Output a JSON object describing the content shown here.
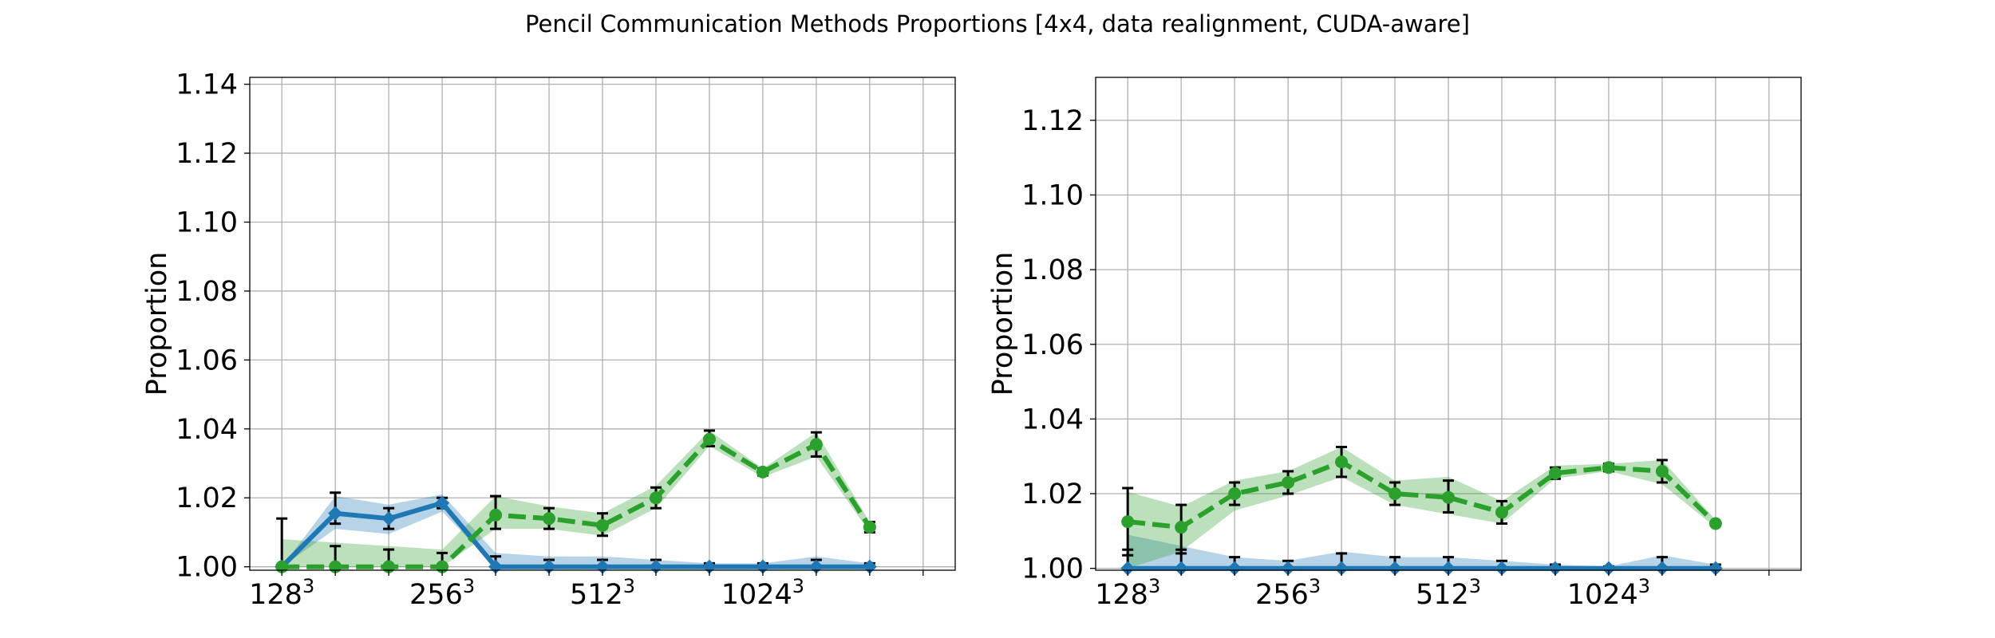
{
  "title": "Pencil Communication Methods Proportions [4x4, data realignment, CUDA-aware]",
  "colors": {
    "series1": "#1f77b4",
    "series2": "#2ca02c",
    "grid": "#b0b0b0",
    "errorbar": "#000000"
  },
  "chart_data": [
    {
      "type": "line",
      "ylabel": "Proportion",
      "ylim": [
        0.999,
        1.142
      ],
      "yticks": [
        "1.00",
        "1.02",
        "1.04",
        "1.06",
        "1.08",
        "1.10",
        "1.12",
        "1.14"
      ],
      "x_tick_labels": [
        "128",
        "256",
        "512",
        "1024"
      ],
      "x_tick_exponent": "3",
      "x_tick_positions": [
        0,
        3,
        6,
        9
      ],
      "grid": true,
      "x": [
        0,
        1,
        2,
        3,
        4,
        5,
        6,
        7,
        8,
        9,
        10,
        11
      ],
      "series": [
        {
          "style": "solid",
          "marker": "diamond",
          "values": [
            1.0,
            1.0155,
            1.014,
            1.0185,
            1.0,
            1.0,
            1.0,
            1.0,
            1.0,
            1.0,
            1.0,
            1.0
          ],
          "band_low": [
            1.0,
            1.011,
            1.0095,
            1.016,
            1.0,
            1.0,
            1.0,
            1.0,
            1.0,
            1.0,
            1.0,
            1.0
          ],
          "band_high": [
            1.0,
            1.0205,
            1.018,
            1.021,
            1.004,
            1.003,
            1.003,
            1.002,
            1.001,
            1.001,
            1.003,
            1.001
          ],
          "err_low": [
            0.0,
            0.003,
            0.003,
            0.0015,
            0.0,
            0.0,
            0.0,
            0.0,
            0.0,
            0.0,
            0.0,
            0.0
          ],
          "err_high": [
            0.0,
            0.006,
            0.003,
            0.0015,
            0.003,
            0.002,
            0.002,
            0.002,
            0.001,
            0.001,
            0.002,
            0.001
          ]
        },
        {
          "style": "dashed",
          "marker": "circle",
          "values": [
            1.0,
            1.0,
            1.0,
            1.0,
            1.015,
            1.014,
            1.012,
            1.02,
            1.037,
            1.0275,
            1.0355,
            1.0115
          ],
          "band_low": [
            1.0,
            1.0,
            1.0,
            1.0,
            1.011,
            1.011,
            1.009,
            1.017,
            1.035,
            1.026,
            1.032,
            1.01
          ],
          "band_high": [
            1.008,
            1.007,
            1.006,
            1.005,
            1.0205,
            1.0175,
            1.0155,
            1.0235,
            1.0395,
            1.0285,
            1.039,
            1.013
          ],
          "err_low": [
            0.0,
            0.0,
            0.0,
            0.0,
            0.004,
            0.003,
            0.003,
            0.003,
            0.002,
            0.001,
            0.0035,
            0.0015
          ],
          "err_high": [
            0.014,
            0.006,
            0.005,
            0.004,
            0.0055,
            0.003,
            0.0035,
            0.003,
            0.0025,
            0.001,
            0.0035,
            0.0015
          ]
        }
      ]
    },
    {
      "type": "line",
      "ylabel": "Proportion",
      "ylim": [
        0.9995,
        1.1315
      ],
      "yticks": [
        "1.00",
        "1.02",
        "1.04",
        "1.06",
        "1.08",
        "1.10",
        "1.12"
      ],
      "x_tick_labels": [
        "128",
        "256",
        "512",
        "1024"
      ],
      "x_tick_exponent": "3",
      "x_tick_positions": [
        0,
        3,
        6,
        9
      ],
      "grid": true,
      "x": [
        0,
        1,
        2,
        3,
        4,
        5,
        6,
        7,
        8,
        9,
        10,
        11
      ],
      "series": [
        {
          "style": "solid",
          "marker": "diamond",
          "values": [
            1.0,
            1.0,
            1.0,
            1.0,
            1.0,
            1.0,
            1.0,
            1.0,
            1.0,
            1.0,
            1.0,
            1.0
          ],
          "band_low": [
            1.0,
            1.0,
            1.0,
            1.0,
            1.0,
            1.0,
            1.0,
            1.0,
            1.0,
            1.0,
            1.0,
            1.0
          ],
          "band_high": [
            1.009,
            1.006,
            1.003,
            1.002,
            1.0045,
            1.003,
            1.003,
            1.002,
            1.001,
            1.0005,
            1.0035,
            1.001
          ],
          "err_low": [
            0.0,
            0.0,
            0.0,
            0.0,
            0.0,
            0.0,
            0.0,
            0.0,
            0.0,
            0.0,
            0.0,
            0.0
          ],
          "err_high": [
            0.005,
            0.005,
            0.003,
            0.002,
            0.004,
            0.003,
            0.003,
            0.002,
            0.001,
            0.0005,
            0.003,
            0.001
          ]
        },
        {
          "style": "dashed",
          "marker": "circle",
          "values": [
            1.0125,
            1.011,
            1.02,
            1.023,
            1.0285,
            1.02,
            1.019,
            1.015,
            1.0255,
            1.027,
            1.026,
            1.012
          ],
          "band_low": [
            1.0,
            1.0045,
            1.0155,
            1.0195,
            1.0245,
            1.017,
            1.0145,
            1.012,
            1.024,
            1.026,
            1.0225,
            1.011
          ],
          "band_high": [
            1.0205,
            1.0165,
            1.0235,
            1.026,
            1.0325,
            1.0235,
            1.0245,
            1.018,
            1.0275,
            1.028,
            1.029,
            1.013
          ],
          "err_low": [
            0.009,
            0.007,
            0.003,
            0.003,
            0.004,
            0.003,
            0.004,
            0.003,
            0.0015,
            0.001,
            0.003,
            0.0
          ],
          "err_high": [
            0.009,
            0.006,
            0.003,
            0.003,
            0.004,
            0.003,
            0.0045,
            0.003,
            0.0015,
            0.001,
            0.003,
            0.0
          ]
        }
      ]
    }
  ]
}
